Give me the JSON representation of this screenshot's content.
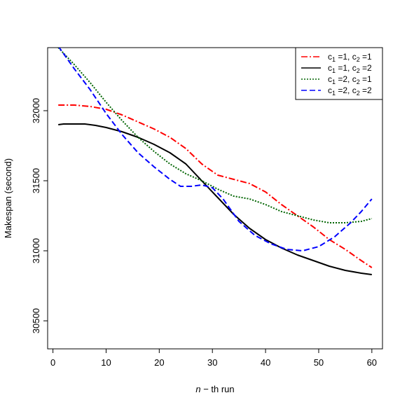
{
  "chart_data": {
    "type": "line",
    "xlabel": {
      "italic": "n",
      "rest": " − th run"
    },
    "ylabel": "Makespan (second)",
    "xlim": [
      -1,
      62
    ],
    "ylim": [
      30300,
      32450
    ],
    "y_axis_reversed": true,
    "xticks": [
      0,
      10,
      20,
      30,
      40,
      50,
      60
    ],
    "yticks": [
      30500,
      31000,
      31500,
      32000
    ],
    "grid": false,
    "legend_position": "top-right",
    "series": [
      {
        "legend": {
          "base1": "c",
          "sub1": "1",
          "eq1": " =1, ",
          "base2": "c",
          "sub2": "2",
          "eq2": " =1"
        },
        "color": "#ff0000",
        "dash": "9,3,2,3",
        "x": [
          1,
          4,
          7,
          10,
          13,
          16,
          19,
          22,
          25,
          28,
          31,
          34,
          37,
          40,
          43,
          46,
          49,
          52,
          55,
          58,
          60
        ],
        "y": [
          32040,
          32040,
          32030,
          32010,
          31970,
          31920,
          31870,
          31810,
          31730,
          31620,
          31540,
          31510,
          31480,
          31420,
          31330,
          31250,
          31170,
          31080,
          31010,
          30930,
          30880
        ]
      },
      {
        "legend": {
          "base1": "c",
          "sub1": "1",
          "eq1": " =1, ",
          "base2": "c",
          "sub2": "2",
          "eq2": " =2"
        },
        "color": "#000000",
        "dash": "",
        "x": [
          1,
          2,
          6,
          8,
          10,
          13,
          16,
          19,
          22,
          25,
          28,
          31,
          34,
          37,
          40,
          43,
          46,
          49,
          52,
          55,
          58,
          60
        ],
        "y": [
          31900,
          31905,
          31905,
          31895,
          31880,
          31850,
          31810,
          31760,
          31700,
          31620,
          31500,
          31380,
          31260,
          31160,
          31080,
          31020,
          30970,
          30930,
          30890,
          30860,
          30840,
          30830
        ]
      },
      {
        "legend": {
          "base1": "c",
          "sub1": "1",
          "eq1": " =2, ",
          "base2": "c",
          "sub2": "2",
          "eq2": " =1"
        },
        "color": "#006400",
        "dash": "2,2",
        "x": [
          1,
          4,
          7,
          10,
          13,
          16,
          19,
          22,
          25,
          28,
          31,
          34,
          37,
          40,
          43,
          46,
          49,
          52,
          55,
          58,
          60
        ],
        "y": [
          32450,
          32330,
          32200,
          32060,
          31930,
          31810,
          31710,
          31620,
          31550,
          31500,
          31440,
          31390,
          31370,
          31330,
          31280,
          31250,
          31220,
          31200,
          31200,
          31210,
          31230
        ]
      },
      {
        "legend": {
          "base1": "c",
          "sub1": "1",
          "eq1": " =2, ",
          "base2": "c",
          "sub2": "2",
          "eq2": " =2"
        },
        "color": "#0000ff",
        "dash": "8,4",
        "x": [
          1,
          4,
          7,
          10,
          13,
          16,
          19,
          22,
          24,
          26,
          28,
          30,
          32,
          35,
          38,
          41,
          44,
          47,
          50,
          53,
          56,
          58,
          60
        ],
        "y": [
          32460,
          32300,
          32150,
          31980,
          31830,
          31700,
          31600,
          31510,
          31460,
          31460,
          31470,
          31450,
          31370,
          31210,
          31110,
          31050,
          31010,
          31000,
          31030,
          31100,
          31200,
          31280,
          31370
        ]
      }
    ]
  }
}
